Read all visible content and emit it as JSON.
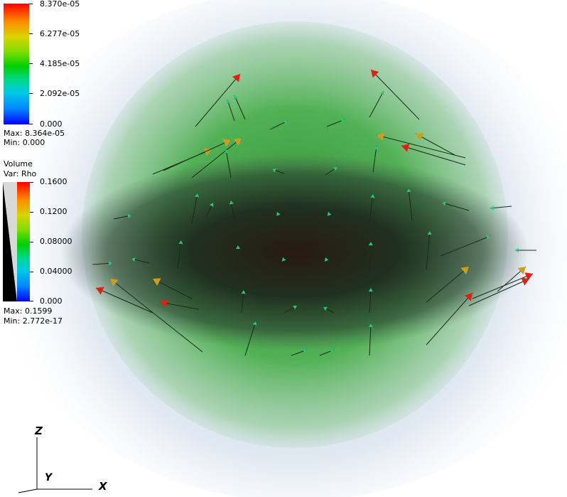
{
  "vector_legend": {
    "ticks": [
      "8.370e-05",
      "6.277e-05",
      "4.185e-05",
      "2.092e-05",
      "0.000"
    ],
    "max_text": "Max:  8.364e-05",
    "min_text": "Min:  0.000"
  },
  "volume_legend": {
    "title": "Volume",
    "var": "Var: Rho",
    "ticks": [
      "0.1600",
      "0.1200",
      "0.08000",
      "0.04000",
      "0.000"
    ],
    "max_text": "Max:  0.1599",
    "min_text": "Min:  2.772e-17"
  },
  "axes": {
    "z": "Z",
    "y": "Y",
    "x": "X"
  },
  "colors": {
    "background": "#ffffff",
    "glow_green": "#3aa83a",
    "core_dark": "#241c10",
    "halo": "#c8d6e4",
    "arrow_high": "#e02010",
    "arrow_mid": "#c8a020",
    "arrow_low": "#28c878",
    "shaft": "#1a2a1a"
  }
}
